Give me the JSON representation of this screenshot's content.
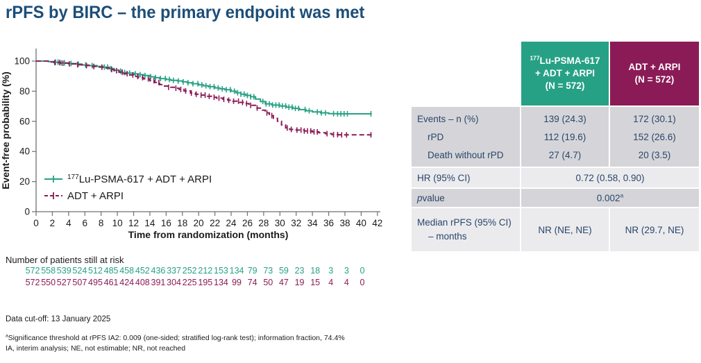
{
  "title": "rPFS by BIRC – the primary endpoint was met",
  "colors": {
    "title_navy": "#1c4e78",
    "table_text_navy": "#2a4569",
    "arm1_green": "#27a185",
    "arm2_maroon": "#8b1b56",
    "row_dark": "#d5d5d9",
    "row_light": "#ebebee",
    "axis_gray": "#6f6f6f"
  },
  "chart_data": {
    "type": "line",
    "subtype": "kaplan-meier-step",
    "title": "",
    "xlabel": "Time from randomization (months)",
    "ylabel": "Event-free probability (%)",
    "xlim": [
      0,
      42
    ],
    "ylim": [
      0,
      100
    ],
    "xticks": [
      0,
      2,
      4,
      6,
      8,
      10,
      12,
      14,
      16,
      18,
      20,
      22,
      24,
      26,
      28,
      30,
      32,
      34,
      36,
      38,
      40,
      42
    ],
    "yticks": [
      0,
      20,
      40,
      60,
      80,
      100
    ],
    "grid": false,
    "legend_position": "inside-lower-left",
    "series": [
      {
        "name": "177Lu-PSMA-617 + ADT + ARPI",
        "name_sup": "177",
        "name_rest": "Lu-PSMA-617 + ADT + ARPI",
        "color": "#27a185",
        "style": "solid",
        "points": [
          [
            0,
            100
          ],
          [
            1.5,
            99.7
          ],
          [
            2.2,
            99.3
          ],
          [
            3,
            98.8
          ],
          [
            4,
            98.4
          ],
          [
            5,
            98
          ],
          [
            5.6,
            97.4
          ],
          [
            6.5,
            97
          ],
          [
            7.5,
            96.5
          ],
          [
            8.3,
            96
          ],
          [
            9,
            95
          ],
          [
            9.6,
            94
          ],
          [
            10.2,
            93.3
          ],
          [
            10.6,
            92.4
          ],
          [
            11.2,
            92
          ],
          [
            12,
            91.5
          ],
          [
            12.6,
            91
          ],
          [
            13.2,
            90.4
          ],
          [
            14,
            89.6
          ],
          [
            14.6,
            89
          ],
          [
            15.2,
            88.4
          ],
          [
            16,
            87.8
          ],
          [
            16.6,
            87.2
          ],
          [
            17.4,
            86.8
          ],
          [
            18,
            86.2
          ],
          [
            18.6,
            85.6
          ],
          [
            19.2,
            85
          ],
          [
            20,
            84.2
          ],
          [
            20.6,
            83.6
          ],
          [
            21.2,
            83
          ],
          [
            22,
            82.2
          ],
          [
            22.6,
            81.6
          ],
          [
            23.2,
            81
          ],
          [
            24,
            80
          ],
          [
            24.6,
            79
          ],
          [
            25.2,
            78
          ],
          [
            25.8,
            77.2
          ],
          [
            26.4,
            76.3
          ],
          [
            27,
            74.8
          ],
          [
            27.6,
            73.2
          ],
          [
            28.2,
            71.6
          ],
          [
            29,
            70.8
          ],
          [
            30,
            70.2
          ],
          [
            30.8,
            69.4
          ],
          [
            31.6,
            68.6
          ],
          [
            32.4,
            67.8
          ],
          [
            33.2,
            67
          ],
          [
            34,
            66.2
          ],
          [
            35,
            65.6
          ],
          [
            36,
            65.1
          ],
          [
            37,
            65
          ],
          [
            41.3,
            65
          ]
        ],
        "censor_months": [
          2.4,
          2.7,
          3.1,
          3.5,
          4.3,
          5.2,
          6.1,
          6.9,
          8.4,
          8.8,
          9.2,
          10.4,
          10.9,
          11.5,
          12.2,
          12.8,
          13.4,
          14.1,
          14.7,
          15.3,
          15.9,
          16.4,
          16.9,
          17.5,
          18.1,
          18.7,
          19.3,
          19.9,
          20.4,
          20.9,
          21.4,
          21.9,
          22.4,
          22.9,
          23.4,
          23.9,
          24.4,
          24.8,
          25.2,
          25.6,
          26.0,
          26.4,
          26.8,
          27.9,
          28.3,
          28.7,
          29.1,
          29.5,
          29.9,
          30.3,
          30.7,
          31.1,
          31.5,
          31.9,
          32.3,
          33.1,
          33.6,
          34.6,
          35.1,
          35.6,
          36.6,
          37.1,
          37.5,
          37.9,
          38.3,
          41.2
        ]
      },
      {
        "name": "ADT + ARPI",
        "name_sup": "",
        "name_rest": "ADT + ARPI",
        "color": "#8b1b56",
        "style": "dashed",
        "points": [
          [
            0,
            100
          ],
          [
            1.5,
            99.4
          ],
          [
            2.2,
            99
          ],
          [
            3,
            98.6
          ],
          [
            4,
            98.1
          ],
          [
            5,
            97.6
          ],
          [
            6,
            97
          ],
          [
            6.6,
            96.4
          ],
          [
            7.4,
            96
          ],
          [
            8.2,
            95.4
          ],
          [
            9,
            94.4
          ],
          [
            9.6,
            93.6
          ],
          [
            10.2,
            92.6
          ],
          [
            10.8,
            91.6
          ],
          [
            11.4,
            90.8
          ],
          [
            12,
            89.8
          ],
          [
            12.6,
            89
          ],
          [
            13.2,
            88.2
          ],
          [
            14,
            87
          ],
          [
            14.6,
            85.8
          ],
          [
            15.2,
            84.4
          ],
          [
            15.7,
            83.4
          ],
          [
            16.2,
            82.6
          ],
          [
            17,
            82
          ],
          [
            17.6,
            81.2
          ],
          [
            18.2,
            80.2
          ],
          [
            19,
            78.8
          ],
          [
            19.6,
            78
          ],
          [
            20.2,
            77.4
          ],
          [
            21,
            76.6
          ],
          [
            21.6,
            76
          ],
          [
            22.2,
            75.4
          ],
          [
            23,
            74.6
          ],
          [
            23.6,
            74
          ],
          [
            24.2,
            73.4
          ],
          [
            25,
            72.6
          ],
          [
            25.6,
            71.8
          ],
          [
            26.2,
            70.6
          ],
          [
            27,
            68.8
          ],
          [
            27.6,
            67.4
          ],
          [
            28.2,
            65.6
          ],
          [
            28.7,
            63.8
          ],
          [
            29.2,
            62
          ],
          [
            29.7,
            60
          ],
          [
            30.2,
            57.6
          ],
          [
            30.7,
            55.6
          ],
          [
            31.2,
            54.6
          ],
          [
            32,
            54.2
          ],
          [
            33,
            53.6
          ],
          [
            34,
            53
          ],
          [
            34.8,
            52.4
          ],
          [
            35.6,
            51.8
          ],
          [
            36.4,
            51.2
          ],
          [
            37.2,
            51
          ],
          [
            41.3,
            51
          ]
        ],
        "censor_months": [
          2.3,
          2.9,
          3.3,
          4.1,
          5.1,
          6.2,
          7.1,
          8.1,
          9.3,
          9.9,
          10.6,
          11.2,
          11.9,
          12.5,
          13.1,
          13.8,
          14.5,
          15.1,
          16.3,
          17.2,
          17.8,
          18.4,
          19.1,
          19.7,
          20.3,
          20.8,
          21.3,
          21.9,
          22.5,
          23.1,
          23.7,
          24.3,
          24.9,
          25.4,
          25.9,
          26.4,
          27.2,
          28.4,
          29.0,
          30.9,
          31.4,
          32.1,
          32.6,
          33.0,
          33.4,
          33.8,
          34.2,
          34.6,
          35.8,
          36.6,
          37.1,
          37.6,
          38.2,
          41.2
        ]
      }
    ]
  },
  "at_risk": {
    "label": "Number of patients still at risk",
    "times": [
      0,
      2,
      4,
      6,
      8,
      10,
      12,
      14,
      16,
      18,
      20,
      22,
      24,
      26,
      28,
      30,
      32,
      34,
      36,
      38,
      40,
      42
    ],
    "rows": [
      {
        "arm": "177Lu-PSMA-617 + ADT + ARPI",
        "color": "#27a185",
        "values": [
          572,
          558,
          539,
          524,
          512,
          485,
          458,
          452,
          436,
          337,
          252,
          212,
          153,
          134,
          79,
          73,
          59,
          23,
          18,
          3,
          3,
          0
        ]
      },
      {
        "arm": "ADT + ARPI",
        "color": "#8b1b56",
        "values": [
          572,
          550,
          527,
          507,
          495,
          461,
          424,
          408,
          391,
          304,
          225,
          195,
          134,
          99,
          74,
          50,
          47,
          19,
          15,
          4,
          4,
          0
        ]
      }
    ]
  },
  "table": {
    "header_arm1": {
      "sup": "177",
      "text": "Lu-PSMA-617\n+ ADT + ARPI\n(N = 572)",
      "bg": "#27a185"
    },
    "header_arm2": {
      "text": "ADT + ARPI\n(N = 572)",
      "bg": "#8b1b56"
    },
    "events": {
      "label": "Events – n (%)",
      "sub1": "rPD",
      "sub2": "Death without rPD",
      "arm1": "139 (24.3)\n112 (19.6)\n27 (4.7)",
      "arm2": "172 (30.1)\n152 (26.6)\n20 (3.5)"
    },
    "hr": {
      "label": "HR (95% CI)",
      "value": "0.72 (0.58, 0.90)"
    },
    "pvalue": {
      "label_italic": "p",
      "label_rest": " value",
      "value": "0.002",
      "value_sup": "a"
    },
    "median": {
      "label1": "Median rPFS (95% CI)",
      "label2": "– months",
      "arm1": "NR (NE, NE)",
      "arm2": "NR (29.7, NE)"
    }
  },
  "footer": {
    "data_cutoff": "Data cut-off: 13 January 2025",
    "footnote1_sup": "a",
    "footnote1": "Significance threshold at rPFS IA2: 0.009 (one-sided; stratified log-rank test); information fraction, 74.4%",
    "footnote2": "IA, interim analysis; NE, not estimable; NR, not reached"
  }
}
